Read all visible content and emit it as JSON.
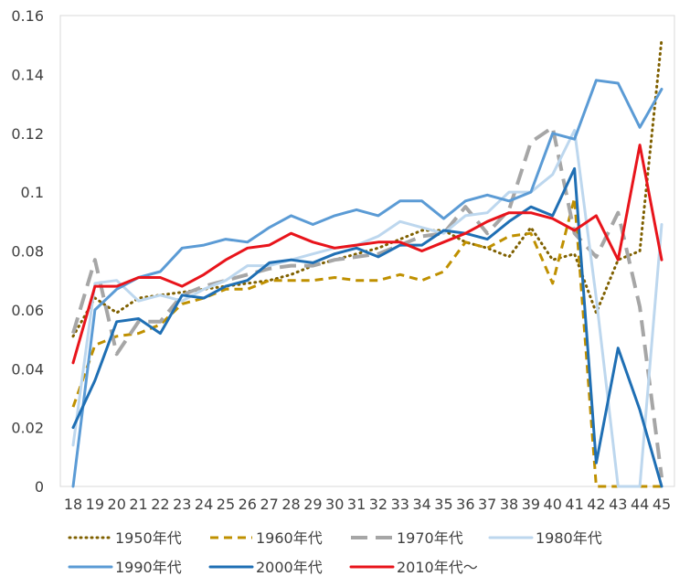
{
  "chart_data": {
    "type": "line",
    "title": "",
    "xlabel": "",
    "ylabel": "",
    "x": [
      18,
      19,
      20,
      21,
      22,
      23,
      24,
      25,
      26,
      27,
      28,
      29,
      30,
      31,
      32,
      33,
      34,
      35,
      36,
      37,
      38,
      39,
      40,
      41,
      42,
      43,
      44,
      45
    ],
    "ylim": [
      0,
      0.16
    ],
    "yticks": [
      0,
      0.02,
      0.04,
      0.06,
      0.08,
      0.1,
      0.12,
      0.14,
      0.16
    ],
    "ytick_labels": [
      "0",
      "0.02",
      "0.04",
      "0.06",
      "0.08",
      "0.1",
      "0.12",
      "0.14",
      "0.16"
    ],
    "grid": false,
    "legend_position": "bottom",
    "series": [
      {
        "name": "1950年代",
        "color": "#7f6000",
        "dash": "dotted",
        "values": [
          0.051,
          0.064,
          0.059,
          0.064,
          0.065,
          0.066,
          0.067,
          0.068,
          0.069,
          0.07,
          0.072,
          0.075,
          0.077,
          0.079,
          0.081,
          0.084,
          0.087,
          0.087,
          0.083,
          0.081,
          0.078,
          0.088,
          0.077,
          0.079,
          0.059,
          0.077,
          0.08,
          0.152
        ]
      },
      {
        "name": "1960年代",
        "color": "#bf9000",
        "dash": "dashed",
        "values": [
          0.027,
          0.048,
          0.051,
          0.052,
          0.055,
          0.062,
          0.064,
          0.067,
          0.067,
          0.07,
          0.07,
          0.07,
          0.071,
          0.07,
          0.07,
          0.072,
          0.07,
          0.073,
          0.083,
          0.081,
          0.085,
          0.086,
          0.069,
          0.098,
          0.0,
          0.0,
          0.0,
          0.0
        ]
      },
      {
        "name": "1970年代",
        "color": "#a6a6a6",
        "dash": "longdash",
        "values": [
          0.052,
          0.077,
          0.045,
          0.056,
          0.056,
          0.065,
          0.068,
          0.07,
          0.072,
          0.074,
          0.075,
          0.075,
          0.077,
          0.078,
          0.079,
          0.082,
          0.085,
          0.086,
          0.095,
          0.086,
          0.094,
          0.117,
          0.122,
          0.086,
          0.078,
          0.093,
          0.061,
          0.003
        ]
      },
      {
        "name": "1980年代",
        "color": "#bdd7ee",
        "dash": "solid",
        "values": [
          0.014,
          0.069,
          0.07,
          0.063,
          0.065,
          0.063,
          0.067,
          0.07,
          0.075,
          0.075,
          0.077,
          0.079,
          0.081,
          0.082,
          0.085,
          0.09,
          0.088,
          0.086,
          0.092,
          0.093,
          0.1,
          0.1,
          0.106,
          0.121,
          0.064,
          0.0,
          0.0,
          0.089
        ]
      },
      {
        "name": "1990年代",
        "color": "#5b9bd5",
        "dash": "solid",
        "values": [
          0.0,
          0.06,
          0.067,
          0.071,
          0.073,
          0.081,
          0.082,
          0.084,
          0.083,
          0.088,
          0.092,
          0.089,
          0.092,
          0.094,
          0.092,
          0.097,
          0.097,
          0.091,
          0.097,
          0.099,
          0.097,
          0.1,
          0.12,
          0.118,
          0.138,
          0.137,
          0.122,
          0.135
        ]
      },
      {
        "name": "2000年代",
        "color": "#1f6fb4",
        "dash": "solid",
        "values": [
          0.02,
          0.036,
          0.056,
          0.057,
          0.052,
          0.065,
          0.064,
          0.068,
          0.07,
          0.076,
          0.077,
          0.076,
          0.079,
          0.081,
          0.078,
          0.082,
          0.082,
          0.087,
          0.086,
          0.084,
          0.09,
          0.095,
          0.092,
          0.108,
          0.008,
          0.047,
          0.026,
          0.0
        ]
      },
      {
        "name": "2010年代～",
        "color": "#e8141b",
        "dash": "solid",
        "values": [
          0.042,
          0.068,
          0.068,
          0.071,
          0.071,
          0.068,
          0.072,
          0.077,
          0.081,
          0.082,
          0.086,
          0.083,
          0.081,
          0.082,
          0.083,
          0.083,
          0.08,
          0.083,
          0.086,
          0.09,
          0.093,
          0.093,
          0.091,
          0.087,
          0.092,
          0.077,
          0.116,
          0.077
        ]
      }
    ]
  }
}
